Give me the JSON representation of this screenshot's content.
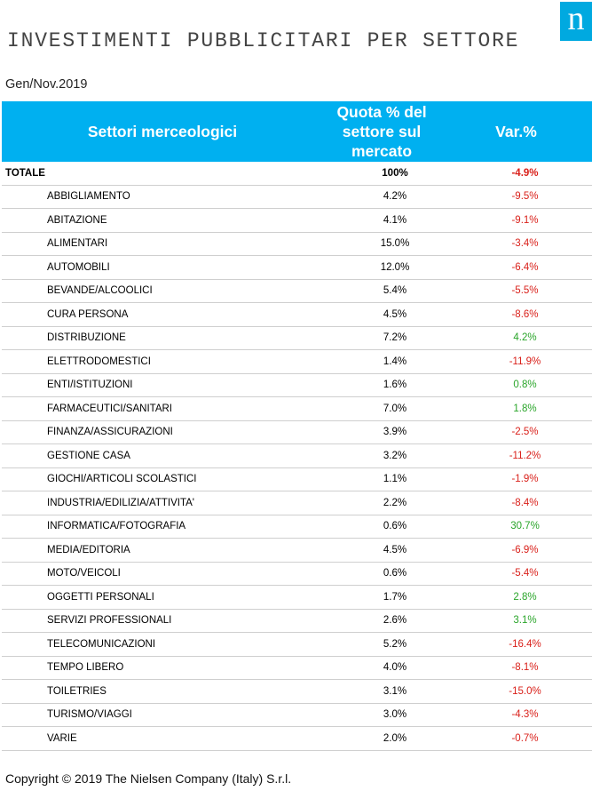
{
  "header": {
    "title": "INVESTIMENTI PUBBLICITARI PER SETTORE",
    "logo_letter": "n",
    "period": "Gen/Nov.2019"
  },
  "colors": {
    "header_bg": "#00b0f0",
    "logo_bg": "#00a9e0",
    "negative": "#d9201a",
    "positive": "#2aa52a"
  },
  "table": {
    "columns": [
      "Settori merceologici",
      "Quota % del settore sul mercato",
      "Var.%"
    ],
    "total": {
      "name": "TOTALE",
      "quota": "100%",
      "var": "-4.9%"
    },
    "rows": [
      {
        "name": "ABBIGLIAMENTO",
        "quota": "4.2%",
        "var": "-9.5%"
      },
      {
        "name": "ABITAZIONE",
        "quota": "4.1%",
        "var": "-9.1%"
      },
      {
        "name": "ALIMENTARI",
        "quota": "15.0%",
        "var": "-3.4%"
      },
      {
        "name": "AUTOMOBILI",
        "quota": "12.0%",
        "var": "-6.4%"
      },
      {
        "name": "BEVANDE/ALCOOLICI",
        "quota": "5.4%",
        "var": "-5.5%"
      },
      {
        "name": "CURA PERSONA",
        "quota": "4.5%",
        "var": "-8.6%"
      },
      {
        "name": "DISTRIBUZIONE",
        "quota": "7.2%",
        "var": "4.2%"
      },
      {
        "name": "ELETTRODOMESTICI",
        "quota": "1.4%",
        "var": "-11.9%"
      },
      {
        "name": "ENTI/ISTITUZIONI",
        "quota": "1.6%",
        "var": "0.8%"
      },
      {
        "name": "FARMACEUTICI/SANITARI",
        "quota": "7.0%",
        "var": "1.8%"
      },
      {
        "name": "FINANZA/ASSICURAZIONI",
        "quota": "3.9%",
        "var": "-2.5%"
      },
      {
        "name": "GESTIONE CASA",
        "quota": "3.2%",
        "var": "-11.2%"
      },
      {
        "name": "GIOCHI/ARTICOLI SCOLASTICI",
        "quota": "1.1%",
        "var": "-1.9%"
      },
      {
        "name": "INDUSTRIA/EDILIZIA/ATTIVITA'",
        "quota": "2.2%",
        "var": "-8.4%"
      },
      {
        "name": "INFORMATICA/FOTOGRAFIA",
        "quota": "0.6%",
        "var": "30.7%"
      },
      {
        "name": "MEDIA/EDITORIA",
        "quota": "4.5%",
        "var": "-6.9%"
      },
      {
        "name": "MOTO/VEICOLI",
        "quota": "0.6%",
        "var": "-5.4%"
      },
      {
        "name": "OGGETTI PERSONALI",
        "quota": "1.7%",
        "var": "2.8%"
      },
      {
        "name": "SERVIZI PROFESSIONALI",
        "quota": "2.6%",
        "var": "3.1%"
      },
      {
        "name": "TELECOMUNICAZIONI",
        "quota": "5.2%",
        "var": "-16.4%"
      },
      {
        "name": "TEMPO LIBERO",
        "quota": "4.0%",
        "var": "-8.1%"
      },
      {
        "name": "TOILETRIES",
        "quota": "3.1%",
        "var": "-15.0%"
      },
      {
        "name": "TURISMO/VIAGGI",
        "quota": "3.0%",
        "var": "-4.3%"
      },
      {
        "name": "VARIE",
        "quota": "2.0%",
        "var": "-0.7%"
      }
    ]
  },
  "footer": {
    "copyright": "Copyright © 2019 The Nielsen Company (Italy) S.r.l."
  }
}
